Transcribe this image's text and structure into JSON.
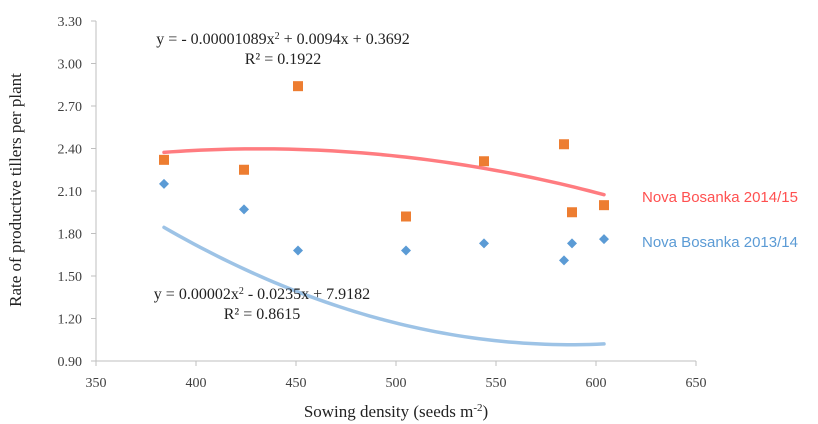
{
  "chart_data": {
    "type": "scatter",
    "xlabel": "Sowing density (seeds m",
    "xlabel_sup": "-2",
    "xlabel_end": ")",
    "ylabel": "Rate of productive tillers per plant",
    "xlim": [
      350,
      650
    ],
    "ylim": [
      0.9,
      3.3
    ],
    "x_ticks": [
      "350",
      "400",
      "450",
      "500",
      "550",
      "600",
      "650"
    ],
    "y_ticks": [
      "0.90",
      "1.20",
      "1.50",
      "1.80",
      "2.10",
      "2.40",
      "2.70",
      "3.00",
      "3.30"
    ],
    "grid": false,
    "series": [
      {
        "name": "Nova Bosanka 2014/15",
        "color": "#ED7D31",
        "trend_color": "#FF7C80",
        "marker": "square",
        "x": [
          384,
          424,
          451,
          505,
          544,
          584,
          588,
          604
        ],
        "y": [
          2.32,
          2.25,
          2.84,
          1.92,
          2.31,
          2.43,
          1.95,
          2.0
        ],
        "trendline": {
          "a": -1.089e-05,
          "b": 0.0094,
          "c": 0.3692
        },
        "equation_parts": [
          "y = - 0.00001089x",
          "2",
          " + 0.0094x + 0.3692"
        ],
        "r2_label": "R² = 0.1922"
      },
      {
        "name": "Nova Bosanka 2013/14",
        "color": "#5B9BD5",
        "trend_color": "#9DC3E6",
        "marker": "diamond",
        "x": [
          384,
          424,
          451,
          505,
          544,
          584,
          588,
          604
        ],
        "y": [
          2.15,
          1.97,
          1.68,
          1.68,
          1.73,
          1.61,
          1.73,
          1.76
        ],
        "trendline": {
          "a": 2e-05,
          "b": -0.0235,
          "c": 7.9182
        },
        "equation_parts": [
          "y = 0.00002x",
          "2",
          " - 0.0235x + 7.9182"
        ],
        "r2_label": "R² = 0.8615"
      }
    ]
  }
}
